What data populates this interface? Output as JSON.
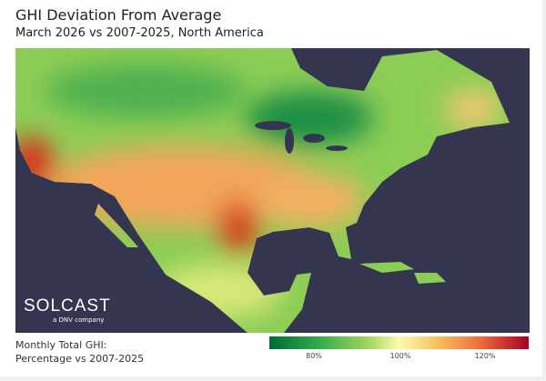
{
  "header": {
    "title": "GHI Deviation From Average",
    "subtitle": "March 2026 vs 2007-2025, North America"
  },
  "legend": {
    "label_line1": "Monthly Total GHI:",
    "label_line2": "Percentage vs 2007-2025",
    "range": [
      70,
      130
    ],
    "unit": "%",
    "ticks": [
      "80%",
      "100%",
      "120%"
    ],
    "colors": [
      "#006b36",
      "#2ea84a",
      "#9fd45e",
      "#fbfbb0",
      "#f7c060",
      "#ec6a3a",
      "#a50026"
    ]
  },
  "logo": {
    "name": "SOLCAST",
    "tagline": "a DNV company"
  },
  "map": {
    "region": "North America",
    "ocean_color": "#343650"
  }
}
